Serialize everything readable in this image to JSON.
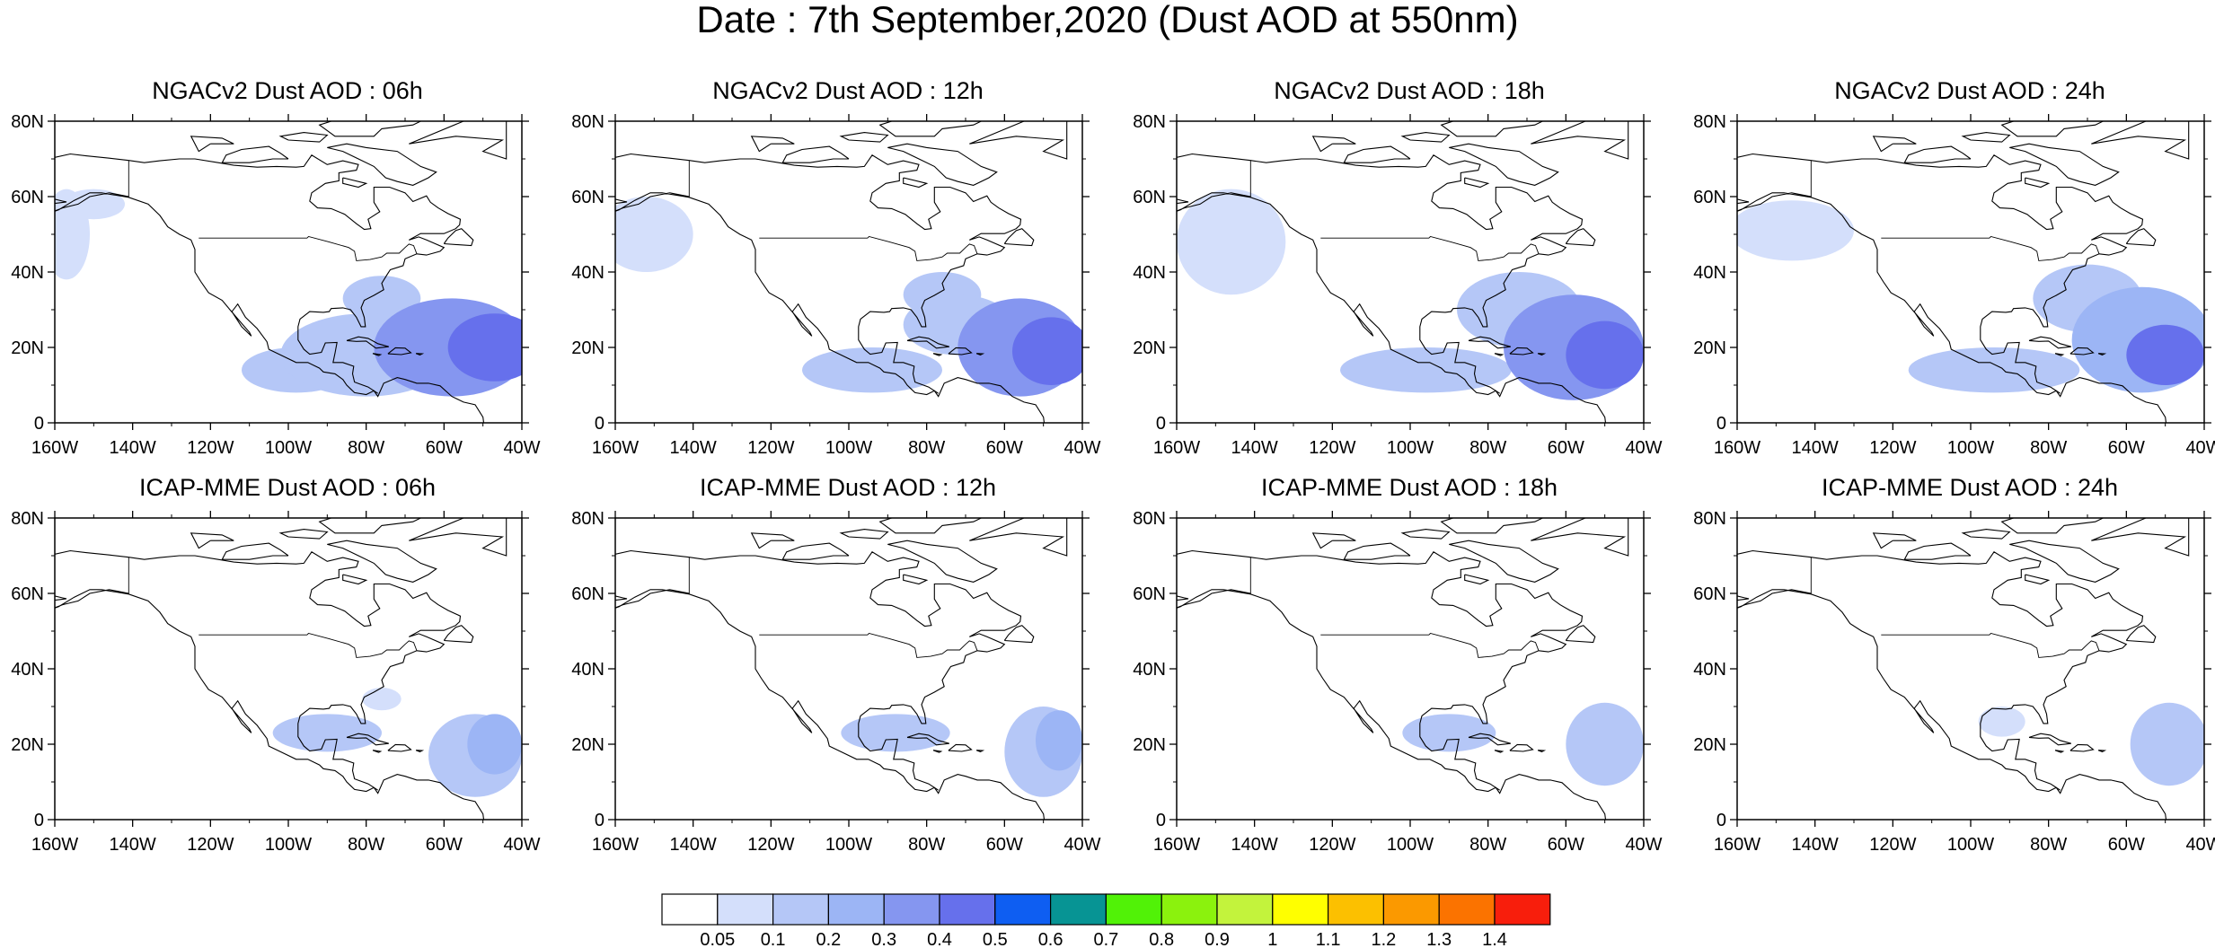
{
  "title": "Date : 7th September,2020 (Dust AOD at 550nm)",
  "axes": {
    "lon_labels": [
      "160W",
      "140W",
      "120W",
      "100W",
      "80W",
      "60W",
      "40W"
    ],
    "lat_labels": [
      "0",
      "20N",
      "40N",
      "60N",
      "80N"
    ],
    "lon_range": [
      -160,
      -40
    ],
    "lat_range": [
      0,
      80
    ]
  },
  "panels": [
    {
      "title": "NGACv2 Dust AOD : 06h"
    },
    {
      "title": "NGACv2 Dust AOD : 12h"
    },
    {
      "title": "NGACv2 Dust AOD : 18h"
    },
    {
      "title": "NGACv2 Dust AOD : 24h"
    },
    {
      "title": "ICAP-MME Dust AOD : 06h"
    },
    {
      "title": "ICAP-MME Dust AOD : 12h"
    },
    {
      "title": "ICAP-MME Dust AOD : 18h"
    },
    {
      "title": "ICAP-MME Dust AOD : 24h"
    }
  ],
  "colorbar": {
    "labels": [
      "0.05",
      "0.1",
      "0.2",
      "0.3",
      "0.4",
      "0.5",
      "0.6",
      "0.7",
      "0.8",
      "0.9",
      "1",
      "1.1",
      "1.2",
      "1.3",
      "1.4"
    ],
    "colors": [
      "#ffffff",
      "#d4dffb",
      "#b5c7f7",
      "#9cb5f5",
      "#8596f0",
      "#6670ec",
      "#0e5ef2",
      "#079494",
      "#51f207",
      "#8bf20d",
      "#c3f33c",
      "#ffff00",
      "#fcc000",
      "#fb9900",
      "#fb7300",
      "#f81e0c"
    ]
  },
  "chart_data": {
    "type": "heatmap",
    "variable": "Dust AOD at 550nm",
    "date": "7th September,2020",
    "xlabel_ticks": [
      "160W",
      "140W",
      "120W",
      "100W",
      "80W",
      "60W",
      "40W"
    ],
    "ylabel_ticks": [
      "0",
      "20N",
      "40N",
      "60N",
      "80N"
    ],
    "xlim": [
      -160,
      -40
    ],
    "ylim": [
      0,
      80
    ],
    "levels": [
      0.05,
      0.1,
      0.2,
      0.3,
      0.4,
      0.5,
      0.6,
      0.7,
      0.8,
      0.9,
      1,
      1.1,
      1.2,
      1.3,
      1.4
    ],
    "fields": [
      {
        "model": "NGACv2",
        "lead": "06h",
        "blobs": [
          {
            "lon": -47,
            "lat": 20,
            "rx": 12,
            "ry": 9,
            "value": 0.45
          },
          {
            "lon": -58,
            "lat": 20,
            "rx": 20,
            "ry": 13,
            "value": 0.3
          },
          {
            "lon": -80,
            "lat": 18,
            "rx": 22,
            "ry": 11,
            "value": 0.15
          },
          {
            "lon": -98,
            "lat": 14,
            "rx": 14,
            "ry": 6,
            "value": 0.12
          },
          {
            "lon": -76,
            "lat": 33,
            "rx": 10,
            "ry": 6,
            "value": 0.12
          },
          {
            "lon": -157,
            "lat": 50,
            "rx": 6,
            "ry": 12,
            "value": 0.08
          },
          {
            "lon": -150,
            "lat": 58,
            "rx": 8,
            "ry": 4,
            "value": 0.07
          }
        ]
      },
      {
        "model": "NGACv2",
        "lead": "12h",
        "blobs": [
          {
            "lon": -48,
            "lat": 19,
            "rx": 10,
            "ry": 9,
            "value": 0.45
          },
          {
            "lon": -56,
            "lat": 20,
            "rx": 16,
            "ry": 13,
            "value": 0.3
          },
          {
            "lon": -72,
            "lat": 26,
            "rx": 14,
            "ry": 8,
            "value": 0.15
          },
          {
            "lon": -94,
            "lat": 14,
            "rx": 18,
            "ry": 6,
            "value": 0.12
          },
          {
            "lon": -76,
            "lat": 34,
            "rx": 10,
            "ry": 6,
            "value": 0.12
          },
          {
            "lon": -152,
            "lat": 50,
            "rx": 12,
            "ry": 10,
            "value": 0.08
          }
        ]
      },
      {
        "model": "NGACv2",
        "lead": "18h",
        "blobs": [
          {
            "lon": -50,
            "lat": 18,
            "rx": 10,
            "ry": 9,
            "value": 0.45
          },
          {
            "lon": -58,
            "lat": 20,
            "rx": 18,
            "ry": 14,
            "value": 0.3
          },
          {
            "lon": -72,
            "lat": 30,
            "rx": 16,
            "ry": 10,
            "value": 0.15
          },
          {
            "lon": -96,
            "lat": 14,
            "rx": 22,
            "ry": 6,
            "value": 0.12
          },
          {
            "lon": -146,
            "lat": 48,
            "rx": 14,
            "ry": 14,
            "value": 0.08
          }
        ]
      },
      {
        "model": "NGACv2",
        "lead": "24h",
        "blobs": [
          {
            "lon": -50,
            "lat": 18,
            "rx": 10,
            "ry": 8,
            "value": 0.4
          },
          {
            "lon": -56,
            "lat": 22,
            "rx": 18,
            "ry": 14,
            "value": 0.25
          },
          {
            "lon": -70,
            "lat": 33,
            "rx": 14,
            "ry": 9,
            "value": 0.15
          },
          {
            "lon": -94,
            "lat": 14,
            "rx": 22,
            "ry": 6,
            "value": 0.12
          },
          {
            "lon": -146,
            "lat": 51,
            "rx": 16,
            "ry": 8,
            "value": 0.08
          }
        ]
      },
      {
        "model": "ICAP-MME",
        "lead": "06h",
        "blobs": [
          {
            "lon": -47,
            "lat": 20,
            "rx": 7,
            "ry": 8,
            "value": 0.25
          },
          {
            "lon": -52,
            "lat": 17,
            "rx": 12,
            "ry": 11,
            "value": 0.12
          },
          {
            "lon": -90,
            "lat": 23,
            "rx": 14,
            "ry": 5,
            "value": 0.1
          },
          {
            "lon": -76,
            "lat": 32,
            "rx": 5,
            "ry": 3,
            "value": 0.08
          }
        ]
      },
      {
        "model": "ICAP-MME",
        "lead": "12h",
        "blobs": [
          {
            "lon": -46,
            "lat": 21,
            "rx": 6,
            "ry": 8,
            "value": 0.2
          },
          {
            "lon": -50,
            "lat": 18,
            "rx": 10,
            "ry": 12,
            "value": 0.12
          },
          {
            "lon": -88,
            "lat": 23,
            "rx": 14,
            "ry": 5,
            "value": 0.1
          }
        ]
      },
      {
        "model": "ICAP-MME",
        "lead": "18h",
        "blobs": [
          {
            "lon": -50,
            "lat": 20,
            "rx": 10,
            "ry": 11,
            "value": 0.12
          },
          {
            "lon": -90,
            "lat": 23,
            "rx": 12,
            "ry": 5,
            "value": 0.1
          }
        ]
      },
      {
        "model": "ICAP-MME",
        "lead": "24h",
        "blobs": [
          {
            "lon": -49,
            "lat": 20,
            "rx": 10,
            "ry": 11,
            "value": 0.12
          },
          {
            "lon": -92,
            "lat": 26,
            "rx": 6,
            "ry": 4,
            "value": 0.08
          }
        ]
      }
    ]
  }
}
